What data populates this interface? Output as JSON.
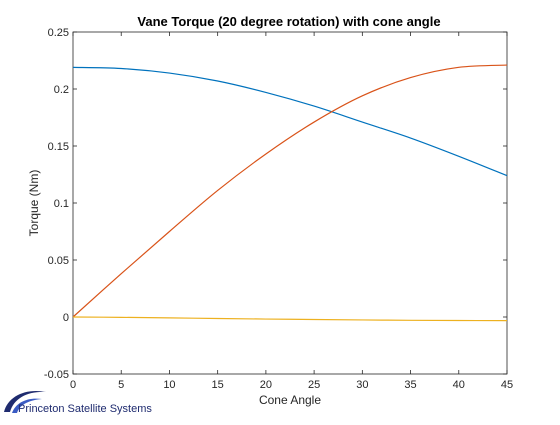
{
  "chart_data": {
    "type": "line",
    "title": "Vane Torque (20 degree rotation) with cone angle",
    "xlabel": "Cone Angle",
    "ylabel": "Torque (Nm)",
    "xlim": [
      0,
      45
    ],
    "ylim": [
      -0.05,
      0.25
    ],
    "xticks": [
      0,
      5,
      10,
      15,
      20,
      25,
      30,
      35,
      40,
      45
    ],
    "yticks": [
      -0.05,
      0,
      0.05,
      0.1,
      0.15,
      0.2,
      0.25
    ],
    "ytick_labels": [
      "-0.05",
      "0",
      "0.05",
      "0.1",
      "0.15",
      "0.2",
      "0.25"
    ],
    "grid": false,
    "x": [
      0,
      5,
      10,
      15,
      20,
      25,
      30,
      35,
      40,
      45
    ],
    "series": [
      {
        "color": "#0072bd",
        "values": [
          0.219,
          0.218,
          0.214,
          0.207,
          0.197,
          0.185,
          0.171,
          0.157,
          0.141,
          0.124
        ]
      },
      {
        "color": "#d95319",
        "values": [
          0.0,
          0.038,
          0.075,
          0.111,
          0.143,
          0.171,
          0.194,
          0.21,
          0.219,
          0.221
        ]
      },
      {
        "color": "#edb120",
        "values": [
          0.0,
          -0.0003,
          -0.0008,
          -0.0013,
          -0.0018,
          -0.0022,
          -0.0026,
          -0.0029,
          -0.0031,
          -0.0032
        ]
      }
    ]
  },
  "branding": {
    "text": "Princeton Satellite Systems",
    "color": "#1f2b6f"
  }
}
